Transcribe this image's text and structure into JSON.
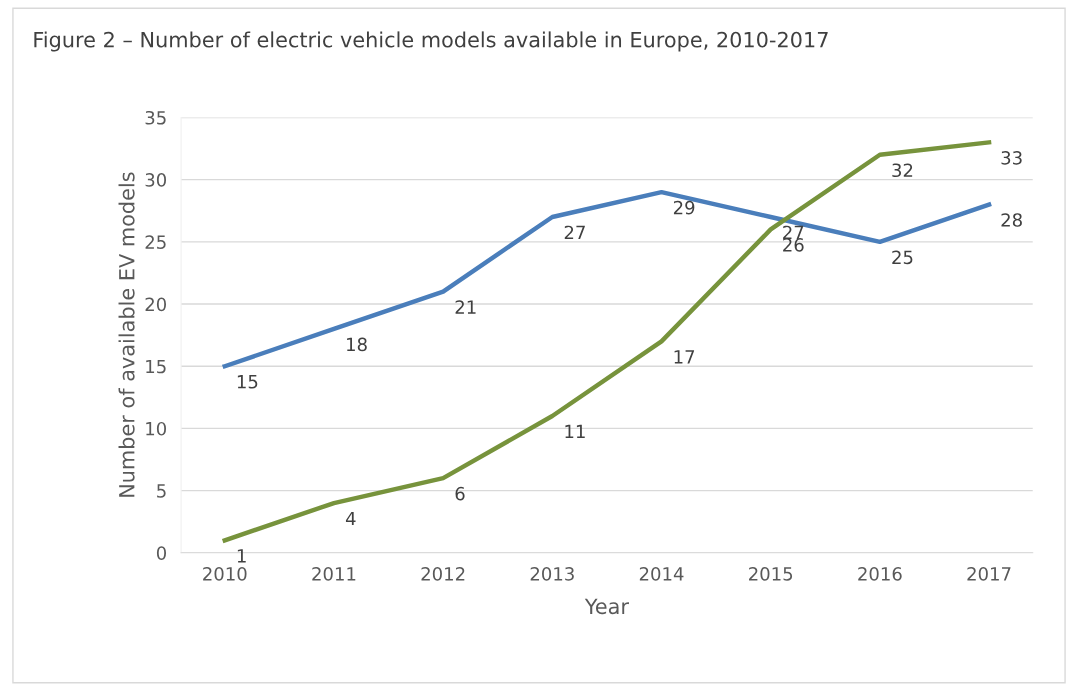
{
  "chart_data": {
    "type": "line",
    "title": "Figure 2 – Number of electric vehicle models available in Europe, 2010-2017",
    "xlabel": "Year",
    "ylabel": "Number of available EV models",
    "categories": [
      "2010",
      "2011",
      "2012",
      "2013",
      "2014",
      "2015",
      "2016",
      "2017"
    ],
    "series": [
      {
        "color": "#4a7ebb",
        "values": [
          15,
          18,
          21,
          27,
          29,
          27,
          25,
          28
        ]
      },
      {
        "color": "#77933c",
        "values": [
          1,
          4,
          6,
          11,
          17,
          26,
          32,
          33
        ]
      }
    ],
    "ylim": [
      0,
      35
    ],
    "yticks": [
      0,
      5,
      10,
      15,
      20,
      25,
      30,
      35
    ],
    "grid": "y",
    "marker": "none",
    "line_style": "solid",
    "data_labels": true
  }
}
